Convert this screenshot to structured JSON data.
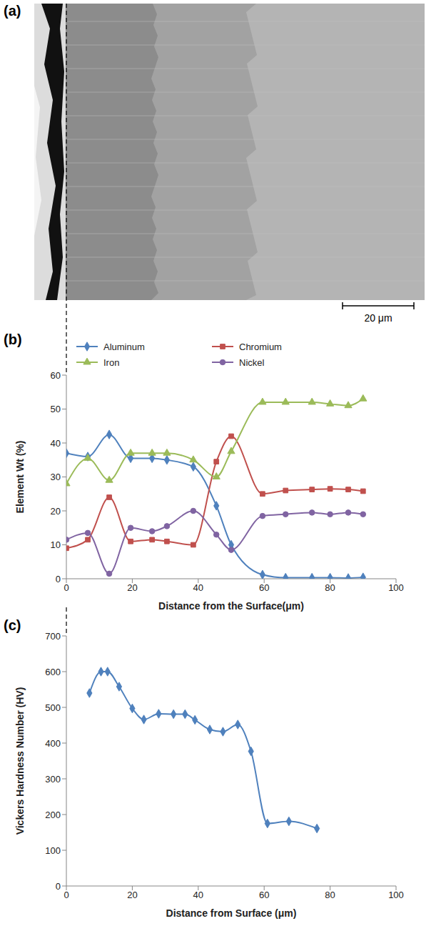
{
  "image": {
    "panel": "(a)",
    "scale_bar": "20 μm"
  },
  "chart_data": [
    {
      "panel": "(b)",
      "type": "line",
      "xlabel": "Distance from the Surface(μm)",
      "ylabel": "Element Wt (%)",
      "x": [
        0,
        6.5,
        13,
        19.5,
        26,
        30.5,
        38.5,
        45.5,
        50,
        59.5,
        66.5,
        74.5,
        80,
        85.5,
        90
      ],
      "series": [
        {
          "name": "Aluminum",
          "color": "#4f81bd",
          "marker": "diamond",
          "values": [
            37,
            36,
            42.5,
            35.5,
            35.5,
            35,
            33,
            21.5,
            10,
            1.2,
            0.3,
            0.3,
            0.3,
            0.2,
            0.4
          ]
        },
        {
          "name": "Chromium",
          "color": "#c0504d",
          "marker": "square",
          "values": [
            9,
            11.5,
            24,
            11,
            11.5,
            11,
            10,
            34.5,
            42,
            25,
            26,
            26.3,
            26.5,
            26.3,
            25.8
          ]
        },
        {
          "name": "Iron",
          "color": "#9bbb59",
          "marker": "triangle",
          "values": [
            28,
            35.5,
            29,
            37,
            37,
            37,
            35,
            30,
            37.5,
            52,
            52,
            52,
            51.5,
            51,
            53
          ]
        },
        {
          "name": "Nickel",
          "color": "#8064a2",
          "marker": "circle",
          "values": [
            11.5,
            13.5,
            1.5,
            15,
            14,
            15.5,
            20,
            13,
            8.5,
            18.5,
            19,
            19.5,
            19,
            19.5,
            19
          ]
        }
      ],
      "xlim": [
        0,
        100
      ],
      "xticks": [
        0,
        20,
        40,
        60,
        80,
        100
      ],
      "ylim": [
        0,
        60
      ],
      "yticks": [
        0,
        10,
        20,
        30,
        40,
        50,
        60
      ],
      "grid": false,
      "legend": "top",
      "line_style": "smooth"
    },
    {
      "panel": "(c)",
      "type": "line",
      "xlabel": "Distance from Surface (μm)",
      "ylabel": "Vickers Hardness Number (HV)",
      "x": [
        7,
        10.5,
        12.5,
        16,
        20,
        23.5,
        28,
        32.5,
        36,
        39,
        43.5,
        47.5,
        52,
        56,
        61,
        67.5,
        76
      ],
      "values": [
        540,
        600,
        600,
        558,
        497,
        466,
        482,
        481,
        481,
        465,
        438,
        432,
        452,
        377,
        175,
        181,
        161
      ],
      "color": "#4f81bd",
      "marker": "diamond",
      "xlim": [
        0,
        100
      ],
      "xticks": [
        0,
        20,
        40,
        60,
        80,
        100
      ],
      "ylim": [
        0,
        700
      ],
      "yticks": [
        0,
        100,
        200,
        300,
        400,
        500,
        600,
        700
      ],
      "grid": false,
      "line_style": "smooth"
    }
  ]
}
